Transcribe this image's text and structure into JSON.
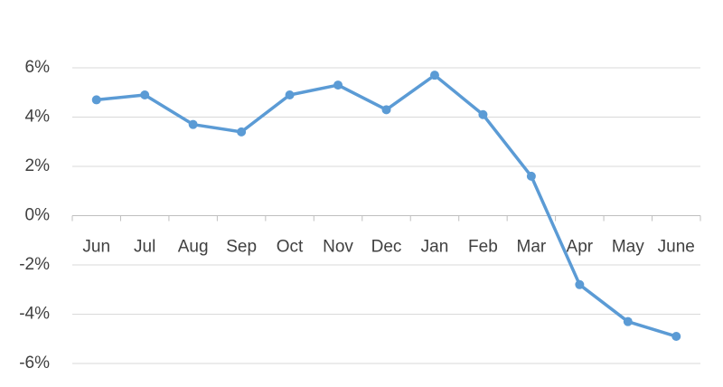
{
  "chart_data": {
    "type": "line",
    "categories": [
      "Jun",
      "Jul",
      "Aug",
      "Sep",
      "Oct",
      "Nov",
      "Dec",
      "Jan",
      "Feb",
      "Mar",
      "Apr",
      "May",
      "June"
    ],
    "values": [
      4.7,
      4.9,
      3.7,
      3.4,
      4.9,
      5.3,
      4.3,
      5.7,
      4.1,
      1.6,
      -2.8,
      -4.3,
      -4.9
    ],
    "color": "#5b9bd5",
    "ylim": [
      -6,
      6
    ],
    "yticks": [
      {
        "value": -6,
        "label": "-6%"
      },
      {
        "value": -4,
        "label": "-4%"
      },
      {
        "value": -2,
        "label": "-2%"
      },
      {
        "value": 0,
        "label": "0%"
      },
      {
        "value": 2,
        "label": "2%"
      },
      {
        "value": 4,
        "label": "4%"
      },
      {
        "value": 6,
        "label": "6%"
      }
    ],
    "grid": true
  }
}
